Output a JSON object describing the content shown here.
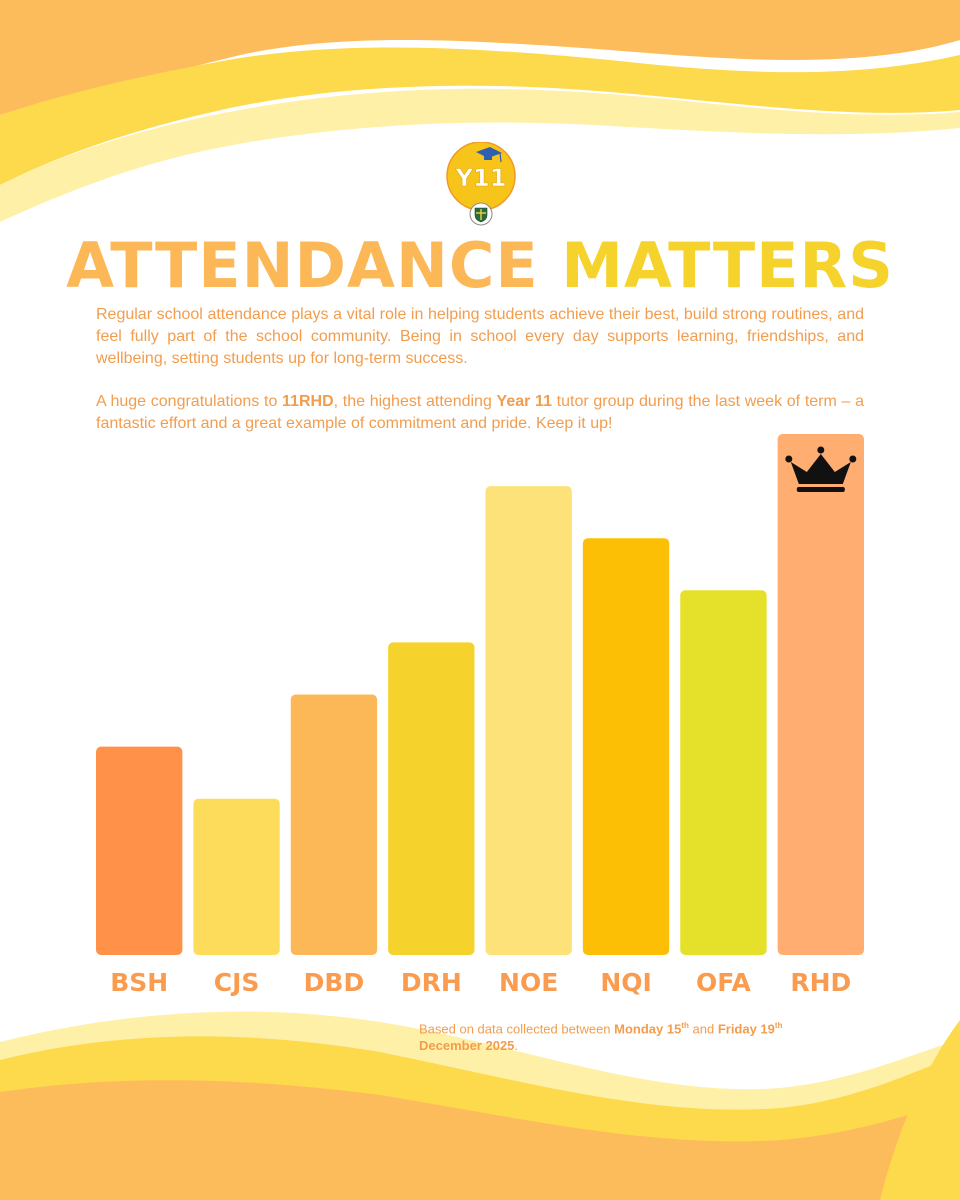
{
  "logo": {
    "badge_text": "Y11"
  },
  "title": {
    "part1": "ATTENDANCE",
    "part2": "MATTERS"
  },
  "intro_text": "Regular school attendance plays a vital role in helping students achieve their best, build strong routines, and feel fully part of the school community. Being in school every day supports learning, friendships, and wellbeing, setting students up for long-term success.",
  "congrats": {
    "before": "A huge congratulations to ",
    "group": "11RHD",
    "middle": ", the highest attending ",
    "year": "Year 11",
    "after": " tutor group during the last week of term – a fantastic effort and a great example of commitment and pride. Keep it up!"
  },
  "chart_data": {
    "type": "bar",
    "title": "",
    "xlabel": "",
    "ylabel": "",
    "categories": [
      "BSH",
      "CJS",
      "DBD",
      "DRH",
      "NOE",
      "NQI",
      "OFA",
      "RHD"
    ],
    "values": [
      4,
      3,
      5,
      6,
      9,
      8,
      7,
      10
    ],
    "ylim": [
      0,
      10
    ],
    "value_note": "No axis or numeric labels are shown; values are relative bar heights",
    "bar_colors": [
      "#ff9248",
      "#fddc5b",
      "#fcb857",
      "#f6d32c",
      "#fde27a",
      "#fcbf05",
      "#e5e02a",
      "#ffad70"
    ],
    "label_color": "#fa9c4f",
    "highlight": {
      "category": "RHD",
      "marker": "crown-icon"
    }
  },
  "footnote": {
    "prefix": "Based on data collected between ",
    "start_day": "Monday 15",
    "start_sup": "th",
    "connector": " and ",
    "end_day": "Friday 19",
    "end_sup": "th",
    "end_rest": " December 2025",
    "suffix": "."
  },
  "colors": {
    "orange": "#fdbc5c",
    "yellow": "#fdd94c",
    "pale": "#fff0a8",
    "text": "#f29d4e"
  }
}
